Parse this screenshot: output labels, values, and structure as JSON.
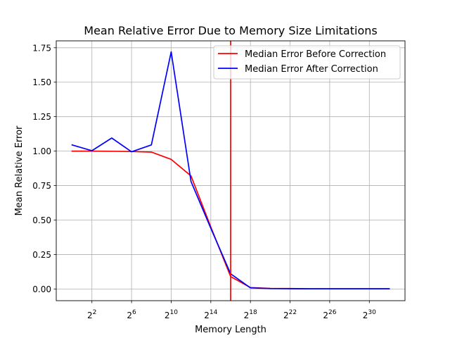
{
  "chart_data": {
    "type": "line",
    "title": "Mean Relative Error Due to Memory Size Limitations",
    "xlabel": "Memory Length",
    "ylabel": "Mean Relative Error",
    "x_scale": "log2",
    "x_exponents": [
      0,
      2,
      4,
      6,
      8,
      10,
      12,
      14,
      16,
      18,
      20,
      22,
      24,
      26,
      28,
      30,
      32
    ],
    "xlim_exponent": [
      -1.6,
      33.6
    ],
    "ylim": [
      -0.085,
      1.8
    ],
    "x_tick_exponents": [
      2,
      6,
      10,
      14,
      18,
      22,
      26,
      30
    ],
    "x_tick_base": "2",
    "y_ticks": [
      0.0,
      0.25,
      0.5,
      0.75,
      1.0,
      1.25,
      1.5,
      1.75
    ],
    "y_tick_labels": [
      "0.00",
      "0.25",
      "0.50",
      "0.75",
      "1.00",
      "1.25",
      "1.50",
      "1.75"
    ],
    "grid": true,
    "legend_position": "top-right",
    "series": [
      {
        "name": "Median Error Before Correction",
        "color": "#ff0000",
        "values": [
          1.0,
          1.0,
          0.999,
          0.997,
          0.993,
          0.94,
          0.82,
          0.45,
          0.09,
          0.01,
          0.004,
          0.003,
          0.001,
          0.001,
          0.001,
          0.001,
          0.001
        ]
      },
      {
        "name": "Median Error After Correction",
        "color": "#0000ff",
        "values": [
          1.045,
          1.003,
          1.095,
          0.995,
          1.045,
          1.72,
          0.78,
          0.44,
          0.11,
          0.008,
          0.003,
          0.002,
          0.001,
          0.001,
          0.001,
          0.001,
          0.001
        ]
      }
    ],
    "vline": {
      "x_exponent": 16,
      "color": "#ff0000"
    }
  }
}
